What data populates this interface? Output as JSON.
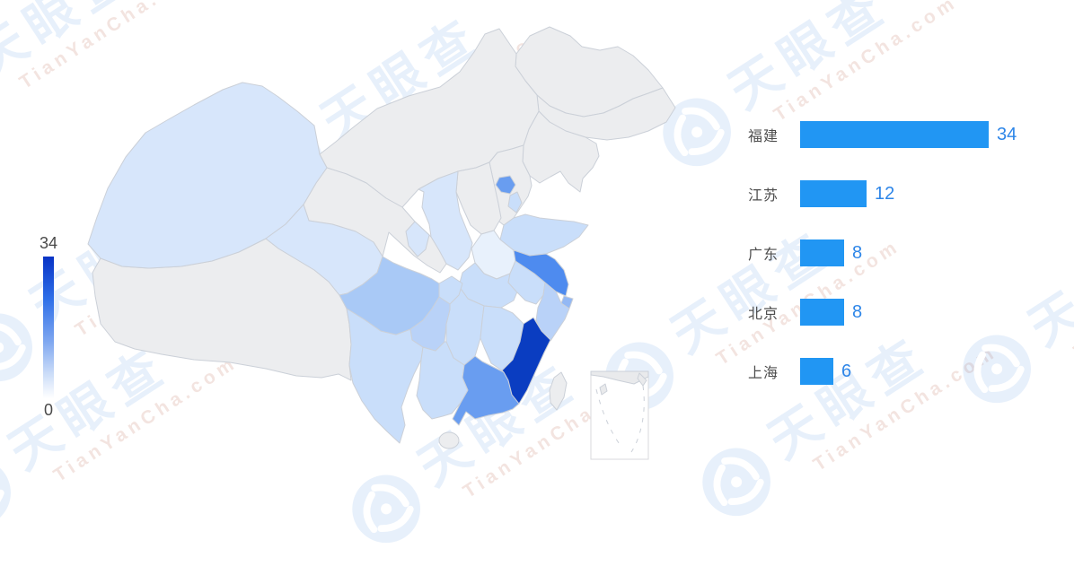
{
  "watermark": {
    "logo_text": "天眼查",
    "domain_text": "TianYanCha.com"
  },
  "chart_data": {
    "type": "choropleth+bar",
    "title": "",
    "region": "China province map",
    "categories": [
      "福建",
      "江苏",
      "广东",
      "北京",
      "上海"
    ],
    "values": [
      34,
      12,
      8,
      8,
      6
    ],
    "colorbar": {
      "max": 34,
      "min": 0,
      "max_label": "34",
      "min_label": "0",
      "top_color": "#0833C5",
      "bottom_color": "#FFFFFF"
    },
    "bar_color": "#2196F3",
    "value_label_color": "#2E86E8",
    "label_color": "#4d4d4d",
    "map_shading": {
      "darkest_province": "福建",
      "bright_provinces": [
        "江苏",
        "北京",
        "广东",
        "上海"
      ],
      "light_shaded_provinces": [
        "新疆",
        "青海",
        "四川",
        "重庆",
        "云南",
        "贵州",
        "广西",
        "陕西",
        "宁夏",
        "山东",
        "天津",
        "河南",
        "湖北",
        "安徽",
        "湖南",
        "江西",
        "浙江"
      ],
      "no_data_color": "#ECEDEF",
      "no_data_provinces": [
        "内蒙古",
        "黑龙江",
        "吉林",
        "辽宁",
        "河北",
        "山西",
        "甘肃",
        "西藏",
        "台湾",
        "海南"
      ]
    }
  }
}
